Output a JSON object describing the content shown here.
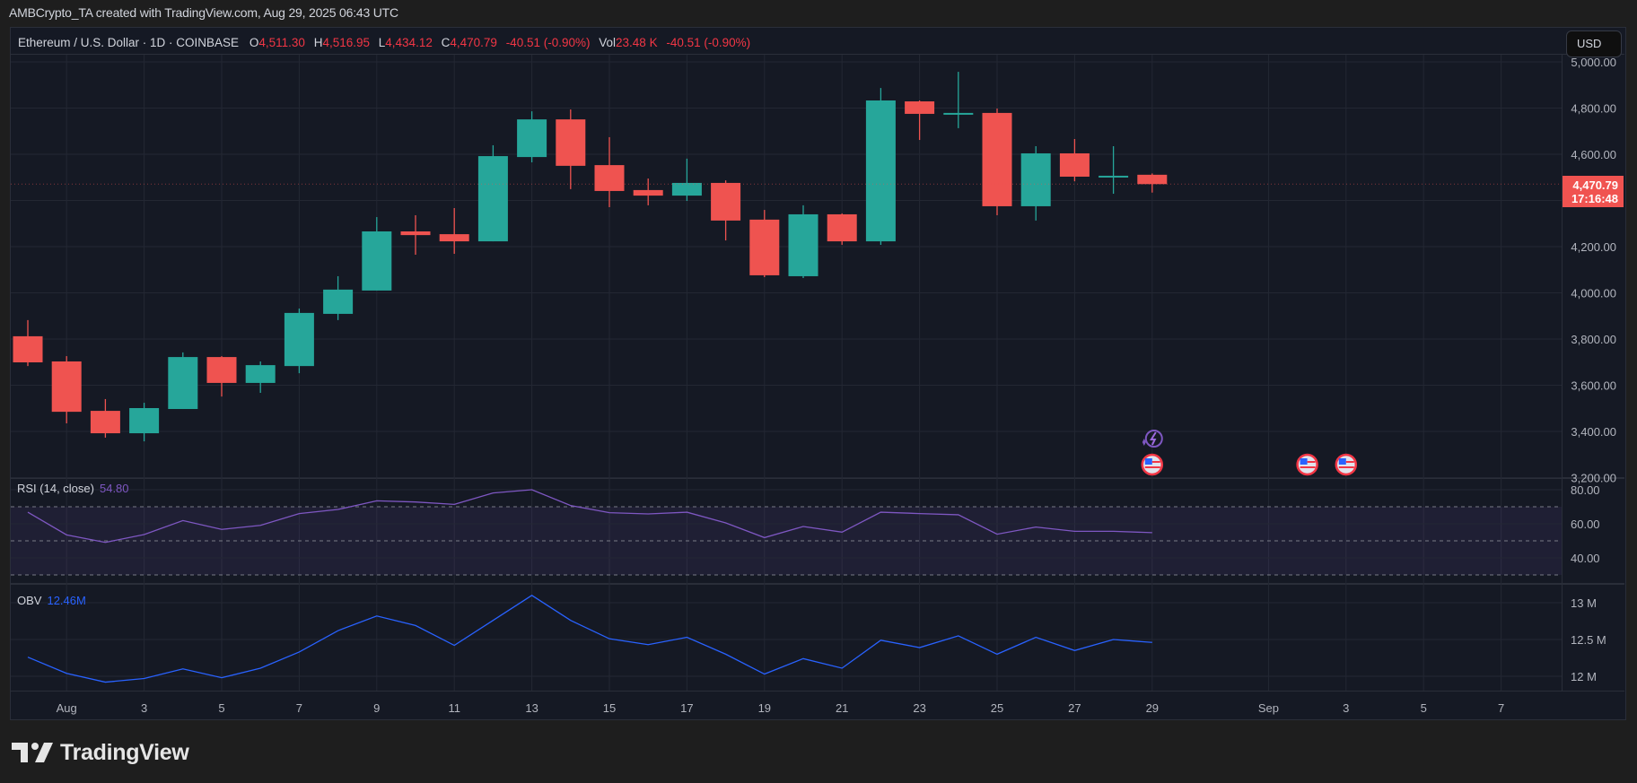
{
  "credit": "AMBCrypto_TA created with TradingView.com, Aug 29, 2025 06:43 UTC",
  "legend": {
    "symbol": "Ethereum / U.S. Dollar · 1D · COINBASE",
    "open_label": "O",
    "open": "4,511.30",
    "high_label": "H",
    "high": "4,516.95",
    "low_label": "L",
    "low": "4,434.12",
    "close_label": "C",
    "close": "4,470.79",
    "change": "-40.51 (-0.90%)",
    "vol_label": "Vol",
    "vol": "23.48 K",
    "vol_change": "-40.51 (-0.90%)"
  },
  "currency_button": "USD",
  "last_price": {
    "price": "4,470.79",
    "countdown": "17:16:48"
  },
  "rsi": {
    "label": "RSI (14, close)",
    "value": "54.80",
    "axis_labels": [
      "80.00",
      "60.00",
      "40.00"
    ],
    "levels": [
      70,
      50,
      30
    ]
  },
  "obv": {
    "label": "OBV",
    "value": "12.46M",
    "axis_labels": [
      "13 M",
      "12.5 M",
      "12 M"
    ]
  },
  "brand": "TradingView",
  "colors": {
    "up": "#26a69a",
    "down": "#ef5350",
    "rsi": "#7e57c2",
    "obv": "#2962ff",
    "background": "#151924"
  },
  "events": [
    {
      "date": "Aug 29",
      "icon": "lightning-icon"
    },
    {
      "date": "Aug 29",
      "icon": "us-flag-icon"
    },
    {
      "date": "Sep 2",
      "icon": "us-flag-icon"
    },
    {
      "date": "Sep 3",
      "icon": "us-flag-icon"
    }
  ],
  "chart_data": {
    "type": "candlestick",
    "price_axis_labels": [
      "5,000.00",
      "4,800.00",
      "4,600.00",
      "4,200.00",
      "4,000.00",
      "3,800.00",
      "3,600.00",
      "3,400.00",
      "3,200.00"
    ],
    "ylim": [
      3200,
      5000
    ],
    "time_axis_labels": [
      {
        "date": "Aug 1",
        "label": "Aug"
      },
      {
        "date": "Aug 3",
        "label": "3"
      },
      {
        "date": "Aug 5",
        "label": "5"
      },
      {
        "date": "Aug 7",
        "label": "7"
      },
      {
        "date": "Aug 9",
        "label": "9"
      },
      {
        "date": "Aug 11",
        "label": "11"
      },
      {
        "date": "Aug 13",
        "label": "13"
      },
      {
        "date": "Aug 15",
        "label": "15"
      },
      {
        "date": "Aug 17",
        "label": "17"
      },
      {
        "date": "Aug 19",
        "label": "19"
      },
      {
        "date": "Aug 21",
        "label": "21"
      },
      {
        "date": "Aug 23",
        "label": "23"
      },
      {
        "date": "Aug 25",
        "label": "25"
      },
      {
        "date": "Aug 27",
        "label": "27"
      },
      {
        "date": "Aug 29",
        "label": "29"
      },
      {
        "date": "Sep 1",
        "label": "Sep"
      },
      {
        "date": "Sep 3",
        "label": "3"
      },
      {
        "date": "Sep 5",
        "label": "5"
      },
      {
        "date": "Sep 7",
        "label": "7"
      }
    ],
    "candles": [
      {
        "date": "Jul 31",
        "o": 3812,
        "h": 3882,
        "l": 3683,
        "c": 3699,
        "rsi": 66.8,
        "obv": 12.26
      },
      {
        "date": "Aug 1",
        "o": 3703,
        "h": 3726,
        "l": 3435,
        "c": 3485,
        "rsi": 53.5,
        "obv": 12.04
      },
      {
        "date": "Aug 2",
        "o": 3489,
        "h": 3540,
        "l": 3373,
        "c": 3392,
        "rsi": 49.1,
        "obv": 11.92
      },
      {
        "date": "Aug 3",
        "o": 3392,
        "h": 3524,
        "l": 3357,
        "c": 3501,
        "rsi": 53.7,
        "obv": 11.97
      },
      {
        "date": "Aug 4",
        "o": 3497,
        "h": 3742,
        "l": 3497,
        "c": 3722,
        "rsi": 61.9,
        "obv": 12.1
      },
      {
        "date": "Aug 5",
        "o": 3722,
        "h": 3726,
        "l": 3551,
        "c": 3610,
        "rsi": 56.7,
        "obv": 11.98
      },
      {
        "date": "Aug 6",
        "o": 3610,
        "h": 3703,
        "l": 3567,
        "c": 3687,
        "rsi": 59.1,
        "obv": 12.11
      },
      {
        "date": "Aug 7",
        "o": 3683,
        "h": 3932,
        "l": 3652,
        "c": 3913,
        "rsi": 66.0,
        "obv": 12.33
      },
      {
        "date": "Aug 8",
        "o": 3909,
        "h": 4072,
        "l": 3882,
        "c": 4014,
        "rsi": 68.4,
        "obv": 12.62
      },
      {
        "date": "Aug 9",
        "o": 4010,
        "h": 4328,
        "l": 4010,
        "c": 4266,
        "rsi": 73.5,
        "obv": 12.82
      },
      {
        "date": "Aug 10",
        "o": 4266,
        "h": 4336,
        "l": 4165,
        "c": 4250,
        "rsi": 72.8,
        "obv": 12.69
      },
      {
        "date": "Aug 11",
        "o": 4254,
        "h": 4367,
        "l": 4169,
        "c": 4223,
        "rsi": 71.4,
        "obv": 12.42
      },
      {
        "date": "Aug 12",
        "o": 4223,
        "h": 4639,
        "l": 4223,
        "c": 4592,
        "rsi": 78.1,
        "obv": 12.76
      },
      {
        "date": "Aug 13",
        "o": 4588,
        "h": 4786,
        "l": 4565,
        "c": 4751,
        "rsi": 80.0,
        "obv": 13.1
      },
      {
        "date": "Aug 14",
        "o": 4751,
        "h": 4794,
        "l": 4449,
        "c": 4550,
        "rsi": 70.7,
        "obv": 12.76
      },
      {
        "date": "Aug 15",
        "o": 4553,
        "h": 4674,
        "l": 4371,
        "c": 4441,
        "rsi": 66.5,
        "obv": 12.51
      },
      {
        "date": "Aug 16",
        "o": 4445,
        "h": 4495,
        "l": 4379,
        "c": 4421,
        "rsi": 65.8,
        "obv": 12.43
      },
      {
        "date": "Aug 17",
        "o": 4421,
        "h": 4581,
        "l": 4398,
        "c": 4476,
        "rsi": 66.8,
        "obv": 12.53
      },
      {
        "date": "Aug 18",
        "o": 4476,
        "h": 4487,
        "l": 4227,
        "c": 4313,
        "rsi": 60.5,
        "obv": 12.3
      },
      {
        "date": "Aug 19",
        "o": 4317,
        "h": 4359,
        "l": 4068,
        "c": 4076,
        "rsi": 51.9,
        "obv": 12.03
      },
      {
        "date": "Aug 20",
        "o": 4072,
        "h": 4379,
        "l": 4064,
        "c": 4340,
        "rsi": 58.4,
        "obv": 12.24
      },
      {
        "date": "Aug 21",
        "o": 4340,
        "h": 4344,
        "l": 4208,
        "c": 4223,
        "rsi": 55.1,
        "obv": 12.11
      },
      {
        "date": "Aug 22",
        "o": 4223,
        "h": 4887,
        "l": 4208,
        "c": 4833,
        "rsi": 66.8,
        "obv": 12.49
      },
      {
        "date": "Aug 23",
        "o": 4829,
        "h": 4833,
        "l": 4662,
        "c": 4775,
        "rsi": 66.0,
        "obv": 12.39
      },
      {
        "date": "Aug 24",
        "o": 4777,
        "h": 4957,
        "l": 4713,
        "c": 4779,
        "rsi": 65.3,
        "obv": 12.55
      },
      {
        "date": "Aug 25",
        "o": 4779,
        "h": 4798,
        "l": 4336,
        "c": 4375,
        "rsi": 53.9,
        "obv": 12.3
      },
      {
        "date": "Aug 26",
        "o": 4375,
        "h": 4635,
        "l": 4313,
        "c": 4604,
        "rsi": 58.1,
        "obv": 12.53
      },
      {
        "date": "Aug 27",
        "o": 4604,
        "h": 4666,
        "l": 4483,
        "c": 4503,
        "rsi": 55.6,
        "obv": 12.35
      },
      {
        "date": "Aug 28",
        "o": 4505,
        "h": 4635,
        "l": 4429,
        "c": 4507,
        "rsi": 55.6,
        "obv": 12.5
      },
      {
        "date": "Aug 29",
        "o": 4511.3,
        "h": 4516.95,
        "l": 4434.12,
        "c": 4470.79,
        "rsi": 54.8,
        "obv": 12.46
      }
    ]
  }
}
